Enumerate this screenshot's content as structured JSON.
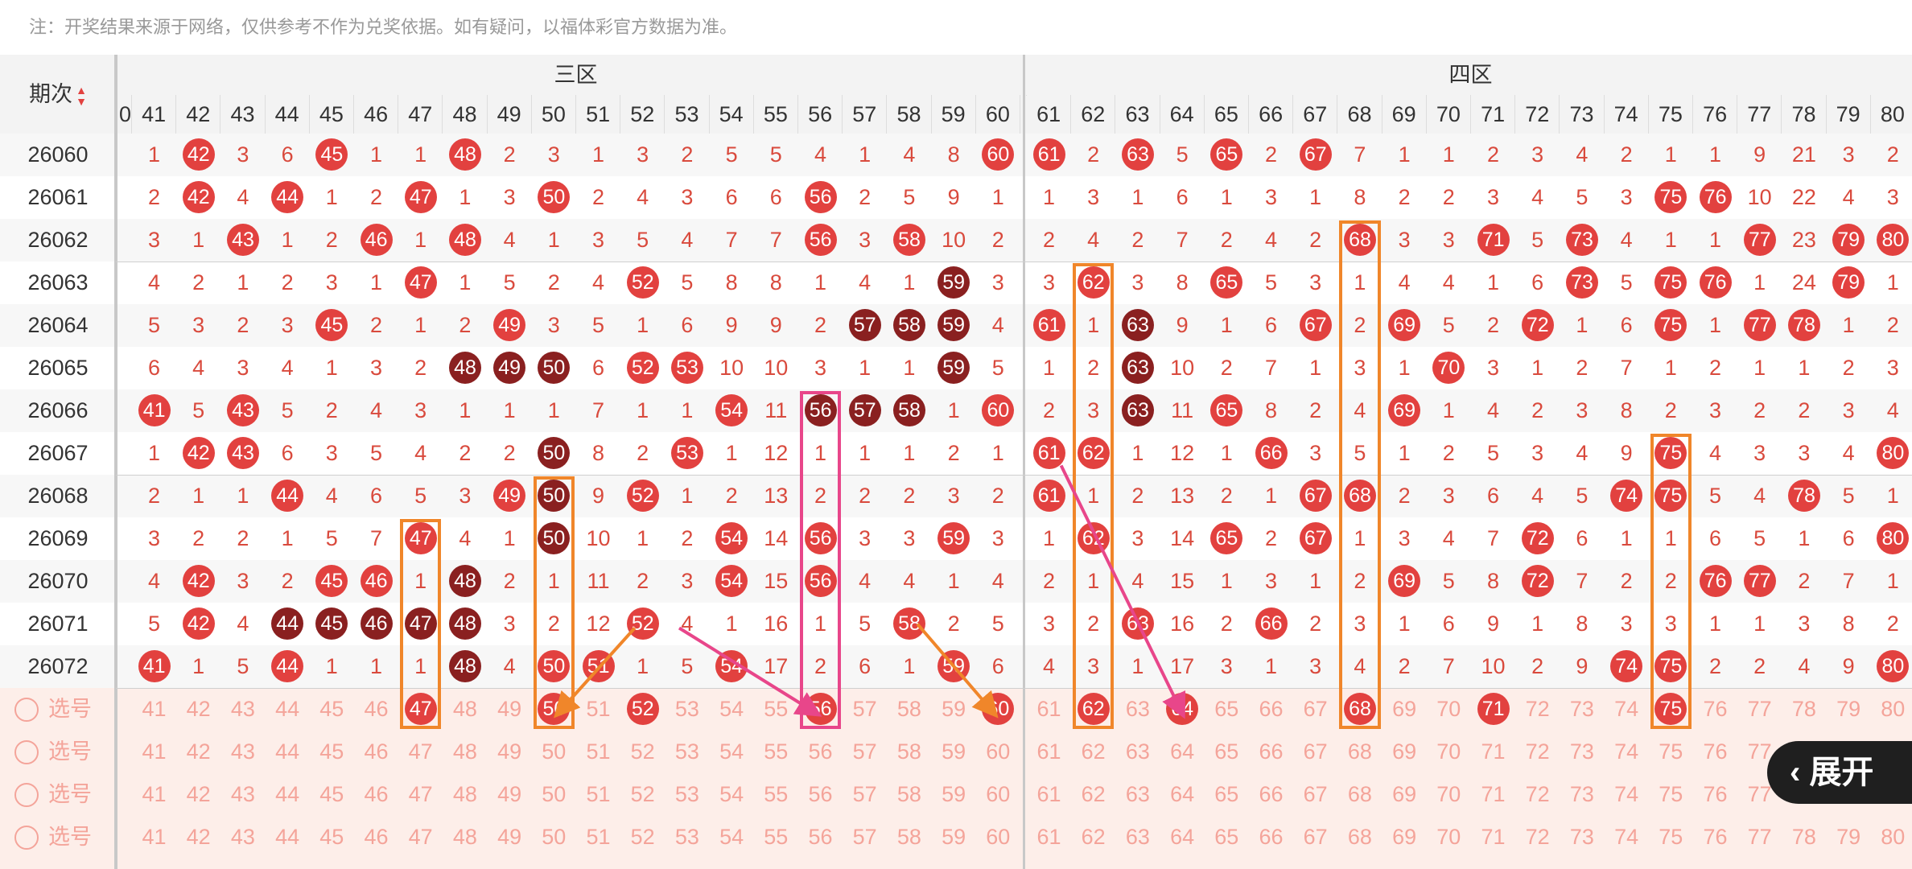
{
  "notice": "注：开奖结果来源于网络，仅供参考不作为兑奖依据。如有疑问，以福体彩官方数据为准。",
  "header": {
    "issue_label": "期次",
    "zones": [
      {
        "label": "三区",
        "from": 41,
        "to": 60
      },
      {
        "label": "四区",
        "from": 61,
        "to": 80
      }
    ]
  },
  "columns": [
    41,
    42,
    43,
    44,
    45,
    46,
    47,
    48,
    49,
    50,
    51,
    52,
    53,
    54,
    55,
    56,
    57,
    58,
    59,
    60,
    61,
    62,
    63,
    64,
    65,
    66,
    67,
    68,
    69,
    70,
    71,
    72,
    73,
    74,
    75,
    76,
    77,
    78,
    79,
    80
  ],
  "rows": [
    {
      "issue": "26060",
      "cells": [
        "1",
        "42",
        "3",
        "6",
        "45",
        "1",
        "1",
        "48",
        "2",
        "3",
        "1",
        "3",
        "2",
        "5",
        "5",
        "4",
        "1",
        "4",
        "8",
        "60",
        "61",
        "2",
        "63",
        "5",
        "65",
        "2",
        "67",
        "7",
        "1",
        "1",
        "2",
        "3",
        "4",
        "2",
        "1",
        "1",
        "9",
        "21",
        "3",
        "2"
      ],
      "dark": []
    },
    {
      "issue": "26061",
      "cells": [
        "2",
        "42",
        "4",
        "44",
        "1",
        "2",
        "47",
        "1",
        "3",
        "50",
        "2",
        "4",
        "3",
        "6",
        "6",
        "56",
        "2",
        "5",
        "9",
        "1",
        "1",
        "3",
        "1",
        "6",
        "1",
        "3",
        "1",
        "8",
        "2",
        "2",
        "3",
        "4",
        "5",
        "3",
        "75",
        "76",
        "10",
        "22",
        "4",
        "3"
      ],
      "dark": []
    },
    {
      "issue": "26062",
      "cells": [
        "3",
        "1",
        "43",
        "1",
        "2",
        "46",
        "1",
        "48",
        "4",
        "1",
        "3",
        "5",
        "4",
        "7",
        "7",
        "56",
        "3",
        "58",
        "10",
        "2",
        "2",
        "4",
        "2",
        "7",
        "2",
        "4",
        "2",
        "68",
        "3",
        "3",
        "71",
        "5",
        "73",
        "4",
        "1",
        "1",
        "77",
        "23",
        "79",
        "80"
      ],
      "dark": []
    },
    {
      "issue": "26063",
      "cells": [
        "4",
        "2",
        "1",
        "2",
        "3",
        "1",
        "47",
        "1",
        "5",
        "2",
        "4",
        "52",
        "5",
        "8",
        "8",
        "1",
        "4",
        "1",
        "59",
        "3",
        "3",
        "62",
        "3",
        "8",
        "65",
        "5",
        "3",
        "1",
        "4",
        "4",
        "1",
        "6",
        "73",
        "5",
        "75",
        "76",
        "1",
        "24",
        "79",
        "1"
      ],
      "dark": [
        "59"
      ]
    },
    {
      "issue": "26064",
      "cells": [
        "5",
        "3",
        "2",
        "3",
        "45",
        "2",
        "1",
        "2",
        "49",
        "3",
        "5",
        "1",
        "6",
        "9",
        "9",
        "2",
        "57",
        "58",
        "59",
        "4",
        "61",
        "1",
        "63",
        "9",
        "1",
        "6",
        "67",
        "2",
        "69",
        "5",
        "2",
        "72",
        "1",
        "6",
        "75",
        "1",
        "77",
        "78",
        "1",
        "2"
      ],
      "dark": [
        "57",
        "58",
        "59",
        "63"
      ]
    },
    {
      "issue": "26065",
      "cells": [
        "6",
        "4",
        "3",
        "4",
        "1",
        "3",
        "2",
        "48",
        "49",
        "50",
        "6",
        "52",
        "53",
        "10",
        "10",
        "3",
        "1",
        "1",
        "59",
        "5",
        "1",
        "2",
        "63",
        "10",
        "2",
        "7",
        "1",
        "3",
        "1",
        "70",
        "3",
        "1",
        "2",
        "7",
        "1",
        "2",
        "1",
        "1",
        "2",
        "3"
      ],
      "dark": [
        "48",
        "49",
        "50",
        "59",
        "63"
      ]
    },
    {
      "issue": "26066",
      "cells": [
        "41",
        "5",
        "43",
        "5",
        "2",
        "4",
        "3",
        "1",
        "1",
        "1",
        "7",
        "1",
        "1",
        "54",
        "11",
        "56",
        "57",
        "58",
        "1",
        "60",
        "2",
        "3",
        "63",
        "11",
        "65",
        "8",
        "2",
        "4",
        "69",
        "1",
        "4",
        "2",
        "3",
        "8",
        "2",
        "3",
        "2",
        "2",
        "3",
        "4"
      ],
      "dark": [
        "56",
        "57",
        "58",
        "63"
      ]
    },
    {
      "issue": "26067",
      "cells": [
        "1",
        "42",
        "43",
        "6",
        "3",
        "5",
        "4",
        "2",
        "2",
        "50",
        "8",
        "2",
        "53",
        "1",
        "12",
        "1",
        "1",
        "1",
        "2",
        "1",
        "61",
        "62",
        "1",
        "12",
        "1",
        "66",
        "3",
        "5",
        "1",
        "2",
        "5",
        "3",
        "4",
        "9",
        "75",
        "4",
        "3",
        "3",
        "4",
        "80"
      ],
      "dark": [
        "50"
      ]
    },
    {
      "issue": "26068",
      "cells": [
        "2",
        "1",
        "1",
        "44",
        "4",
        "6",
        "5",
        "3",
        "49",
        "50",
        "9",
        "52",
        "1",
        "2",
        "13",
        "2",
        "2",
        "2",
        "3",
        "2",
        "61",
        "1",
        "2",
        "13",
        "2",
        "1",
        "67",
        "68",
        "2",
        "3",
        "6",
        "4",
        "5",
        "74",
        "75",
        "5",
        "4",
        "78",
        "5",
        "1"
      ],
      "dark": [
        "50"
      ]
    },
    {
      "issue": "26069",
      "cells": [
        "3",
        "2",
        "2",
        "1",
        "5",
        "7",
        "47",
        "4",
        "1",
        "50",
        "10",
        "1",
        "2",
        "54",
        "14",
        "56",
        "3",
        "3",
        "59",
        "3",
        "1",
        "62",
        "3",
        "14",
        "65",
        "2",
        "67",
        "1",
        "3",
        "4",
        "7",
        "72",
        "6",
        "1",
        "1",
        "6",
        "5",
        "1",
        "6",
        "80"
      ],
      "dark": [
        "50"
      ]
    },
    {
      "issue": "26070",
      "cells": [
        "4",
        "42",
        "3",
        "2",
        "45",
        "46",
        "1",
        "48",
        "2",
        "1",
        "11",
        "2",
        "3",
        "54",
        "15",
        "56",
        "4",
        "4",
        "1",
        "4",
        "2",
        "1",
        "4",
        "15",
        "1",
        "3",
        "1",
        "2",
        "69",
        "5",
        "8",
        "72",
        "7",
        "2",
        "2",
        "76",
        "77",
        "2",
        "7",
        "1"
      ],
      "dark": [
        "48"
      ]
    },
    {
      "issue": "26071",
      "cells": [
        "5",
        "42",
        "4",
        "44",
        "45",
        "46",
        "47",
        "48",
        "3",
        "2",
        "12",
        "52",
        "4",
        "1",
        "16",
        "1",
        "5",
        "58",
        "2",
        "5",
        "3",
        "2",
        "63",
        "16",
        "2",
        "66",
        "2",
        "3",
        "1",
        "6",
        "9",
        "1",
        "8",
        "3",
        "3",
        "1",
        "1",
        "3",
        "8",
        "2"
      ],
      "dark": [
        "44",
        "45",
        "46",
        "47",
        "48"
      ]
    },
    {
      "issue": "26072",
      "cells": [
        "41",
        "1",
        "5",
        "44",
        "1",
        "1",
        "1",
        "48",
        "4",
        "50",
        "51",
        "1",
        "5",
        "54",
        "17",
        "2",
        "6",
        "1",
        "59",
        "6",
        "4",
        "3",
        "1",
        "17",
        "3",
        "1",
        "3",
        "4",
        "2",
        "7",
        "10",
        "2",
        "9",
        "74",
        "75",
        "2",
        "2",
        "4",
        "9",
        "80"
      ],
      "dark": [
        "48"
      ]
    }
  ],
  "pick_rows": [
    {
      "label": "选号",
      "selected": [
        "47",
        "50",
        "52",
        "56",
        "60",
        "62",
        "64",
        "68",
        "71",
        "75"
      ]
    },
    {
      "label": "选号",
      "selected": []
    },
    {
      "label": "选号",
      "selected": []
    },
    {
      "label": "选号",
      "selected": []
    }
  ],
  "toggle": {
    "label": "展开",
    "icon": "chevron-left-icon"
  },
  "colors": {
    "ball_red": "#e2413f",
    "ball_dark": "#8a2020",
    "highlight_orange": "#f0862a",
    "highlight_pink": "#e8468a"
  }
}
